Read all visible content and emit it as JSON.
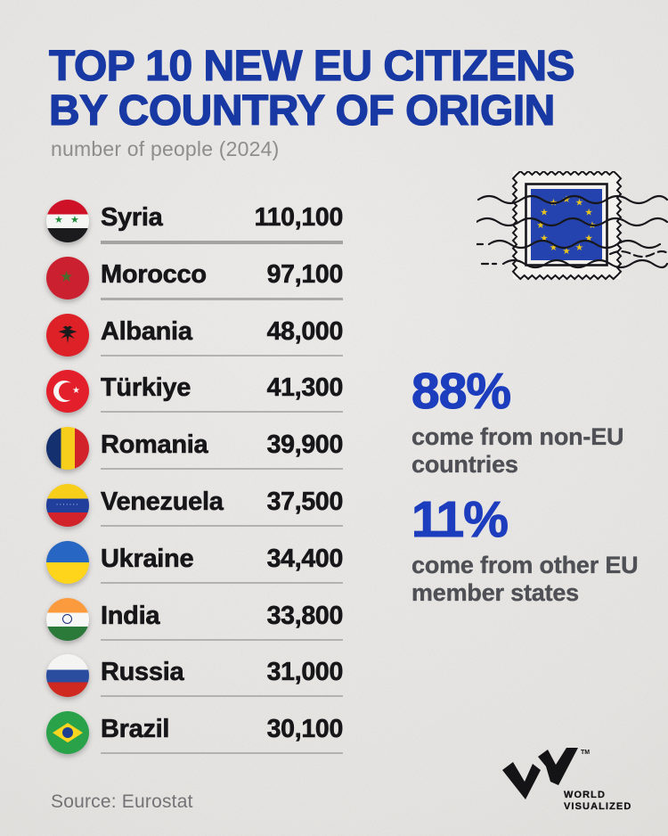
{
  "header": {
    "title_line1": "TOP 10 NEW EU CITIZENS",
    "title_line2": "BY COUNTRY OF ORIGIN",
    "subtitle": "number of people (2024)"
  },
  "rows": [
    {
      "country": "Syria",
      "value": "110,100"
    },
    {
      "country": "Morocco",
      "value": "97,100"
    },
    {
      "country": "Albania",
      "value": "48,000"
    },
    {
      "country": "Türkiye",
      "value": "41,300"
    },
    {
      "country": "Romania",
      "value": "39,900"
    },
    {
      "country": "Venezuela",
      "value": "37,500"
    },
    {
      "country": "Ukraine",
      "value": "34,400"
    },
    {
      "country": "India",
      "value": "33,800"
    },
    {
      "country": "Russia",
      "value": "31,000"
    },
    {
      "country": "Brazil",
      "value": "30,100"
    }
  ],
  "callouts": [
    {
      "pct": "88%",
      "desc": "come from non-EU countries"
    },
    {
      "pct": "11%",
      "desc": "come from other EU member states"
    }
  ],
  "footer": {
    "source": "Source: Eurostat",
    "logo_line1": "WORLD",
    "logo_line2": "VISUALIZED",
    "tm": "TM"
  },
  "icons": {
    "stamp": "eu-flag-postage-stamp",
    "logo_mark": "wv-zigzag-monogram",
    "flags": [
      "flag-syria",
      "flag-morocco",
      "flag-albania",
      "flag-turkiye",
      "flag-romania",
      "flag-venezuela",
      "flag-ukraine",
      "flag-india",
      "flag-russia",
      "flag-brazil"
    ]
  },
  "colors": {
    "title_blue": "#1838a4",
    "stat_blue": "#1c3dbd",
    "text_dark": "#17171a",
    "desc_gray": "#4e5056",
    "muted_gray": "#8d8d8c",
    "paper": "#e7e5e2",
    "divider": "#b3b2b0",
    "eu_flag_blue": "#2543ae",
    "eu_star_gold": "#e9c41e"
  },
  "chart_data": {
    "type": "table",
    "title": "TOP 10 NEW EU CITIZENS BY COUNTRY OF ORIGIN",
    "subtitle": "number of people (2024)",
    "categories": [
      "Syria",
      "Morocco",
      "Albania",
      "Türkiye",
      "Romania",
      "Venezuela",
      "Ukraine",
      "India",
      "Russia",
      "Brazil"
    ],
    "values": [
      110100,
      97100,
      48000,
      41300,
      39900,
      37500,
      34400,
      33800,
      31000,
      30100
    ],
    "value_labels": [
      "110,100",
      "97,100",
      "48,000",
      "41,300",
      "39,900",
      "37,500",
      "34,400",
      "33,800",
      "31,000",
      "30,100"
    ],
    "annotations": [
      {
        "value": "88%",
        "label": "come from non-EU countries"
      },
      {
        "value": "11%",
        "label": "come from other EU member states"
      }
    ],
    "source": "Source: Eurostat",
    "legend_position": "none",
    "grid": false
  }
}
